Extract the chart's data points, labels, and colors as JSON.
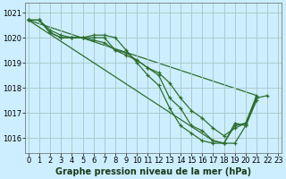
{
  "title": "Graphe pression niveau de la mer (hPa)",
  "background_color": "#cceeff",
  "grid_color": "#aacccc",
  "line_color": "#2d6e2d",
  "x_ticks": [
    0,
    1,
    2,
    3,
    4,
    5,
    6,
    7,
    8,
    9,
    10,
    11,
    12,
    13,
    14,
    15,
    16,
    17,
    18,
    19,
    20,
    21,
    22,
    23
  ],
  "y_ticks": [
    1016,
    1017,
    1018,
    1019,
    1020,
    1021
  ],
  "ylim": [
    1015.4,
    1021.4
  ],
  "xlim": [
    -0.3,
    23.3
  ],
  "series": [
    [
      1020.7,
      1020.7,
      1020.3,
      1020.1,
      1020.0,
      1020.0,
      1020.1,
      1020.1,
      1020.0,
      1019.5,
      1019.0,
      1018.5,
      1018.1,
      1017.2,
      1016.5,
      1016.2,
      1015.9,
      1015.8,
      1015.8,
      1016.5,
      1016.6,
      1017.6,
      null,
      null
    ],
    [
      1020.7,
      1020.7,
      1020.2,
      1020.0,
      1020.0,
      1020.0,
      1020.0,
      1020.0,
      1019.5,
      1019.4,
      1019.1,
      1018.8,
      1018.5,
      1017.6,
      1017.2,
      1016.5,
      1016.3,
      1015.9,
      1015.8,
      1015.8,
      1016.5,
      1017.5,
      null,
      null
    ],
    [
      1020.7,
      1020.7,
      1020.2,
      1020.0,
      1020.0,
      1020.0,
      1019.9,
      1019.8,
      1019.5,
      1019.3,
      1019.1,
      1018.8,
      1018.6,
      1018.2,
      1017.6,
      1017.1,
      1016.8,
      1016.4,
      1016.1,
      1016.4,
      1016.6,
      1017.7,
      null,
      null
    ],
    [
      1020.7,
      null,
      null,
      null,
      null,
      null,
      null,
      null,
      null,
      null,
      null,
      null,
      null,
      null,
      null,
      null,
      null,
      1015.9,
      1015.8,
      1016.6,
      1016.5,
      1017.6,
      1017.7,
      null
    ]
  ],
  "series2": [
    [
      1020.7,
      1020.7,
      null,
      null,
      null,
      null,
      null,
      null,
      null,
      null,
      null,
      null,
      null,
      null,
      null,
      null,
      null,
      null,
      null,
      null,
      null,
      null,
      null,
      null
    ],
    [
      null,
      null,
      null,
      null,
      null,
      null,
      null,
      null,
      null,
      null,
      null,
      null,
      null,
      null,
      null,
      null,
      null,
      null,
      null,
      null,
      null,
      null,
      1017.6,
      null
    ]
  ],
  "long_series": [
    1020.7,
    null,
    null,
    null,
    null,
    null,
    null,
    null,
    null,
    null,
    null,
    null,
    null,
    null,
    null,
    null,
    null,
    null,
    null,
    null,
    1016.5,
    1017.4,
    1017.7,
    null
  ],
  "title_fontsize": 7,
  "tick_fontsize": 6
}
